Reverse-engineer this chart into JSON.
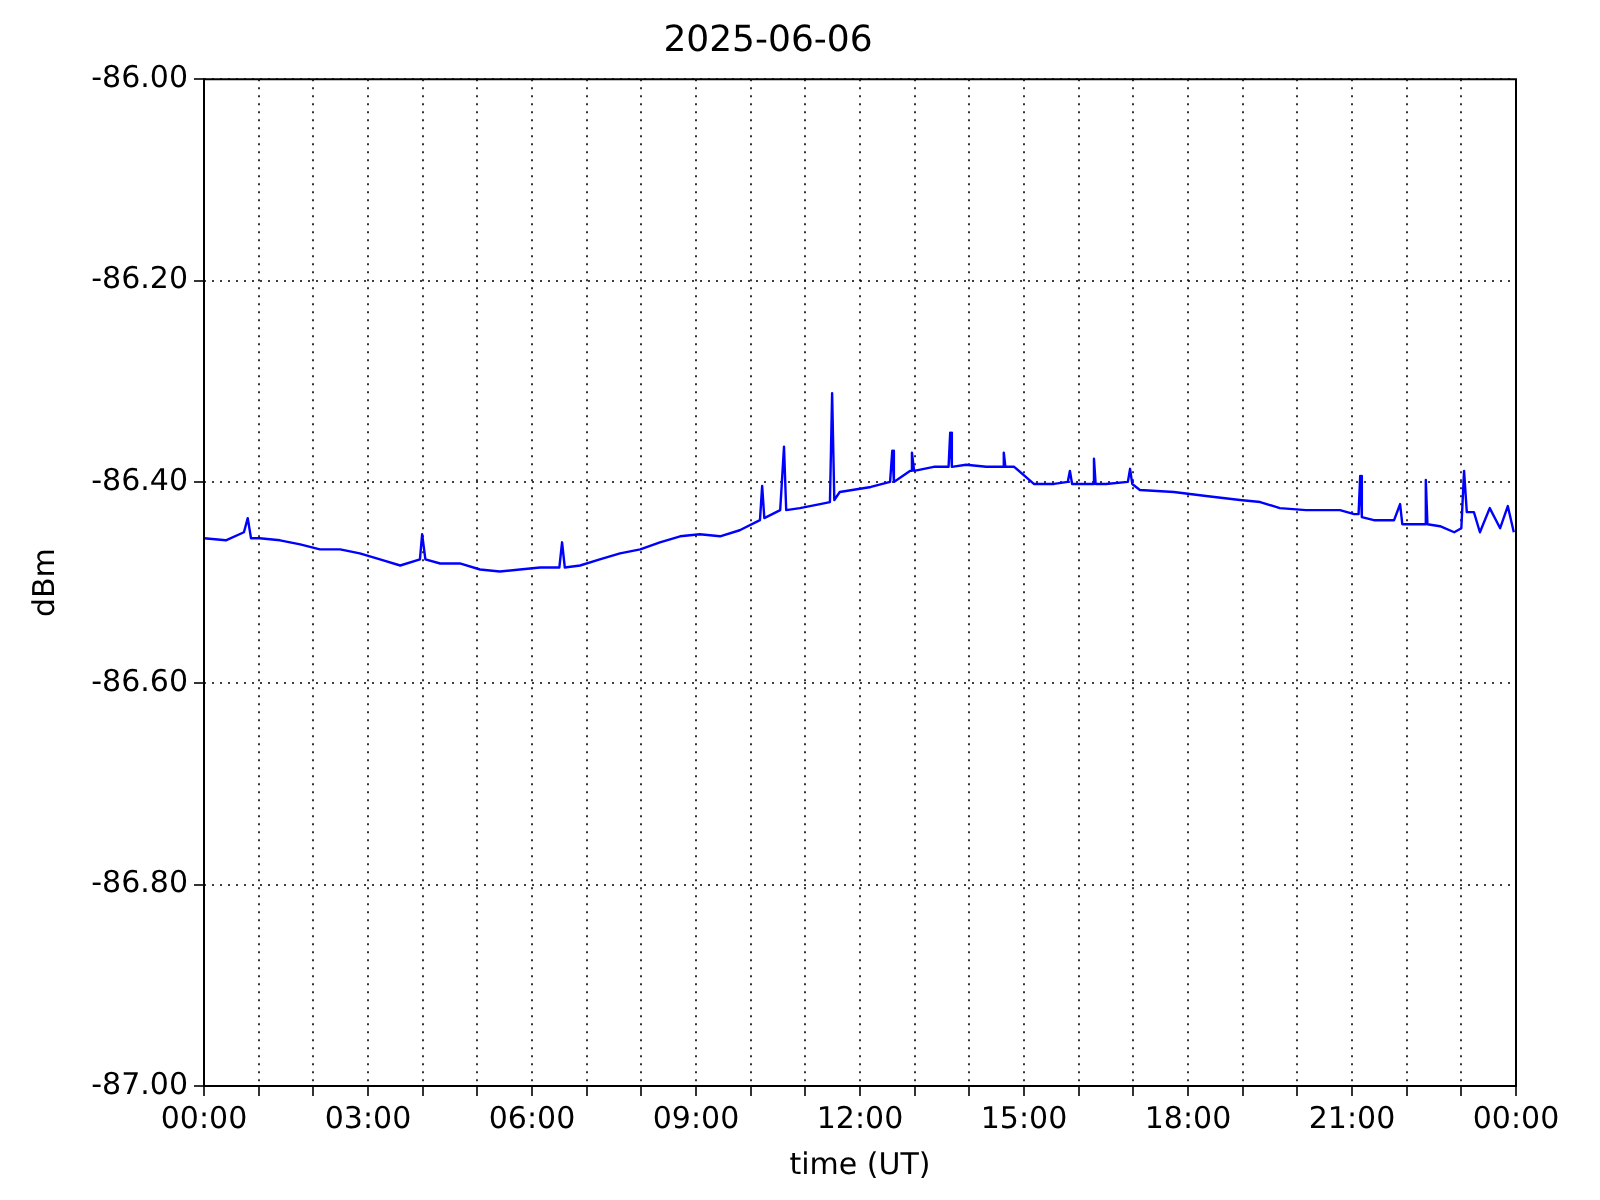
{
  "chart_data": {
    "type": "line",
    "title": "2025-06-06",
    "xlabel": "time (UT)",
    "ylabel": "dBm",
    "xlim": [
      0,
      24
    ],
    "ylim": [
      -87,
      -86
    ],
    "xticks": [
      {
        "value": 0,
        "label": "00:00"
      },
      {
        "value": 1,
        "label": null
      },
      {
        "value": 2,
        "label": null
      },
      {
        "value": 3,
        "label": "03:00"
      },
      {
        "value": 4,
        "label": null
      },
      {
        "value": 5,
        "label": null
      },
      {
        "value": 6,
        "label": "06:00"
      },
      {
        "value": 7,
        "label": null
      },
      {
        "value": 8,
        "label": null
      },
      {
        "value": 9,
        "label": "09:00"
      },
      {
        "value": 10,
        "label": null
      },
      {
        "value": 11,
        "label": null
      },
      {
        "value": 12,
        "label": "12:00"
      },
      {
        "value": 13,
        "label": null
      },
      {
        "value": 14,
        "label": null
      },
      {
        "value": 15,
        "label": "15:00"
      },
      {
        "value": 16,
        "label": null
      },
      {
        "value": 17,
        "label": null
      },
      {
        "value": 18,
        "label": "18:00"
      },
      {
        "value": 19,
        "label": null
      },
      {
        "value": 20,
        "label": null
      },
      {
        "value": 21,
        "label": "21:00"
      },
      {
        "value": 22,
        "label": null
      },
      {
        "value": 23,
        "label": null
      },
      {
        "value": 24,
        "label": "00:00"
      }
    ],
    "yticks": [
      {
        "value": -87,
        "label": "-87.00"
      },
      {
        "value": -86.8,
        "label": "-86.80"
      },
      {
        "value": -86.6,
        "label": "-86.60"
      },
      {
        "value": -86.4,
        "label": "-86.40"
      },
      {
        "value": -86.2,
        "label": "-86.20"
      },
      {
        "value": -86,
        "label": "-86.00"
      }
    ],
    "grid": true,
    "legend": false,
    "marker": "none",
    "line_style": "solid",
    "series": [
      {
        "color": "#0000ff",
        "x": [
          0,
          0.4,
          0.73,
          0.8,
          0.86,
          1.02,
          1.39,
          1.76,
          2.12,
          2.49,
          2.85,
          3.22,
          3.59,
          3.95,
          3.99,
          4.05,
          4.32,
          4.68,
          5.05,
          5.41,
          5.78,
          6.15,
          6.5,
          6.55,
          6.6,
          6.88,
          7.24,
          7.61,
          7.98,
          8.34,
          8.71,
          9.07,
          9.44,
          9.8,
          10.17,
          10.21,
          10.25,
          10.54,
          10.61,
          10.65,
          10.9,
          11.27,
          11.45,
          11.49,
          11.53,
          11.63,
          12.2,
          12.55,
          12.59,
          12.62,
          12.92,
          12.95,
          12.99,
          13.35,
          13.62,
          13.65,
          13.68,
          13.94,
          14.31,
          14.6,
          14.63,
          14.66,
          14.82,
          15.18,
          15.55,
          15.8,
          15.84,
          15.88,
          16.02,
          16.25,
          16.28,
          16.31,
          16.5,
          16.9,
          16.94,
          16.98,
          17.12,
          17.74,
          18.33,
          18.95,
          19.32,
          19.68,
          20.16,
          20.78,
          21.04,
          21.12,
          21.15,
          21.18,
          21.4,
          21.77,
          21.88,
          21.92,
          22.13,
          22.32,
          22.35,
          22.38,
          22.61,
          22.87,
          23.0,
          23.05,
          23.1,
          23.23,
          23.34,
          23.52,
          23.71,
          23.85,
          23.96
        ],
        "values": [
          -86.456,
          -86.458,
          -86.45,
          -86.436,
          -86.456,
          -86.456,
          -86.458,
          -86.462,
          -86.467,
          -86.467,
          -86.471,
          -86.477,
          -86.483,
          -86.477,
          -86.452,
          -86.477,
          -86.481,
          -86.481,
          -86.487,
          -86.489,
          -86.487,
          -86.485,
          -86.485,
          -86.46,
          -86.485,
          -86.483,
          -86.477,
          -86.471,
          -86.467,
          -86.46,
          -86.454,
          -86.452,
          -86.454,
          -86.448,
          -86.438,
          -86.404,
          -86.436,
          -86.428,
          -86.365,
          -86.428,
          -86.426,
          -86.422,
          -86.42,
          -86.312,
          -86.418,
          -86.41,
          -86.405,
          -86.4,
          -86.369,
          -86.4,
          -86.389,
          -86.371,
          -86.389,
          -86.385,
          -86.385,
          -86.351,
          -86.385,
          -86.383,
          -86.385,
          -86.385,
          -86.371,
          -86.385,
          -86.385,
          -86.402,
          -86.402,
          -86.4,
          -86.389,
          -86.402,
          -86.402,
          -86.402,
          -86.377,
          -86.402,
          -86.402,
          -86.4,
          -86.387,
          -86.402,
          -86.408,
          -86.41,
          -86.414,
          -86.418,
          -86.42,
          -86.426,
          -86.428,
          -86.428,
          -86.432,
          -86.432,
          -86.394,
          -86.435,
          -86.438,
          -86.438,
          -86.422,
          -86.442,
          -86.442,
          -86.442,
          -86.398,
          -86.442,
          -86.444,
          -86.45,
          -86.446,
          -86.389,
          -86.43,
          -86.43,
          -86.45,
          -86.426,
          -86.446,
          -86.424,
          -86.45
        ]
      }
    ]
  }
}
